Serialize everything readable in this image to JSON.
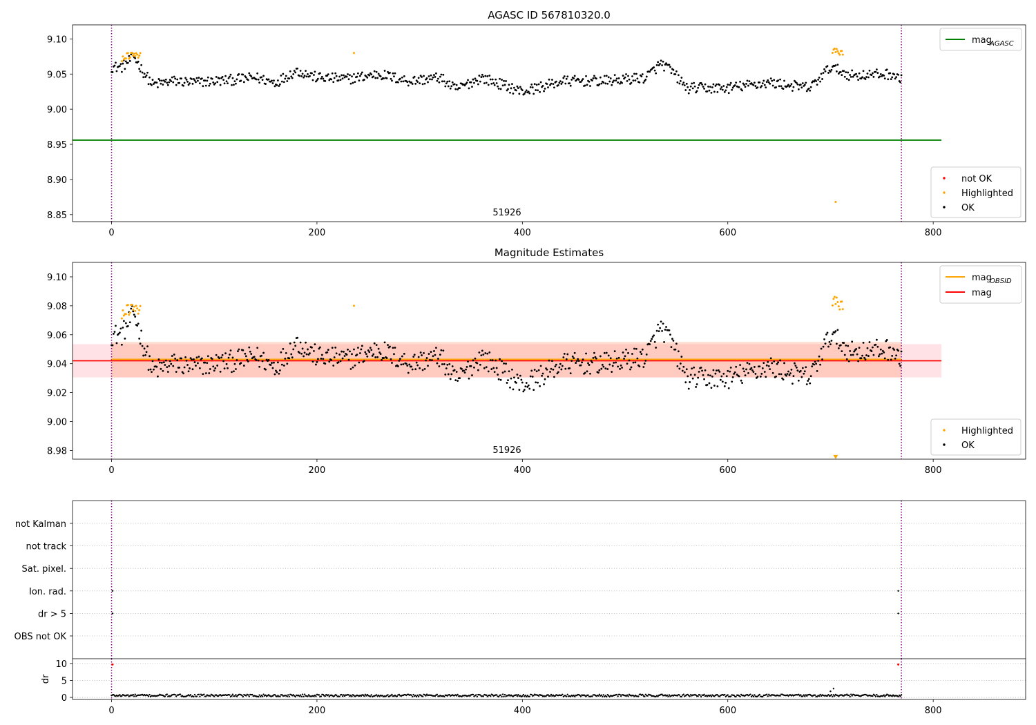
{
  "chart_data": [
    {
      "type": "scatter",
      "title": "AGASC ID 567810320.0",
      "obsid_label": "51926",
      "xlim": [
        -38,
        890
      ],
      "ylim": [
        8.84,
        9.12
      ],
      "xticks": [
        0,
        200,
        400,
        600,
        800
      ],
      "xtick_labels": [
        "0",
        "200",
        "400",
        "600",
        "800"
      ],
      "yticks": [
        8.85,
        8.9,
        8.95,
        9.0,
        9.05,
        9.1
      ],
      "ytick_labels": [
        "8.85",
        "8.90",
        "8.95",
        "9.00",
        "9.05",
        "9.10"
      ],
      "vlines": [
        0,
        769
      ],
      "lines": [
        {
          "name": "mag_AGASC",
          "color": "#008000",
          "y": 8.956,
          "x": [
            -38,
            808
          ]
        }
      ],
      "legend_lines": [
        {
          "label": "mag",
          "sub": "AGASC",
          "color": "#008000"
        }
      ],
      "legend_points": [
        {
          "label": "not OK",
          "color": "#ff0000"
        },
        {
          "label": "Highlighted",
          "color": "#ffa500"
        },
        {
          "label": "OK",
          "color": "#000000"
        }
      ],
      "highlight_segments": [
        {
          "x": [
            10,
            28
          ],
          "y": [
            9.074,
            9.08
          ],
          "noise": 0.006
        },
        {
          "x": [
            702,
            712
          ],
          "y": [
            9.084,
            9.08
          ],
          "noise": 0.004
        }
      ],
      "highlight_points": [
        {
          "x": 236,
          "y": 9.08
        },
        {
          "x": 705,
          "y": 8.868
        }
      ],
      "ok_anchors": {
        "x": [
          0,
          10,
          22,
          30,
          40,
          60,
          80,
          100,
          120,
          140,
          160,
          180,
          200,
          230,
          260,
          290,
          320,
          335,
          360,
          400,
          440,
          480,
          520,
          535,
          545,
          560,
          600,
          640,
          680,
          700,
          720,
          760,
          770
        ],
        "y": [
          9.06,
          9.06,
          9.075,
          9.055,
          9.035,
          9.04,
          9.038,
          9.04,
          9.042,
          9.045,
          9.038,
          9.055,
          9.045,
          9.043,
          9.05,
          9.04,
          9.045,
          9.028,
          9.045,
          9.025,
          9.04,
          9.04,
          9.045,
          9.065,
          9.055,
          9.03,
          9.03,
          9.038,
          9.03,
          9.06,
          9.048,
          9.05,
          9.04
        ]
      },
      "ok_noise": 0.0075,
      "point_count": 770
    },
    {
      "type": "scatter",
      "title": "Magnitude Estimates",
      "obsid_label": "51926",
      "xlim": [
        -38,
        890
      ],
      "ylim": [
        8.974,
        9.11
      ],
      "xticks": [
        0,
        200,
        400,
        600,
        800
      ],
      "xtick_labels": [
        "0",
        "200",
        "400",
        "600",
        "800"
      ],
      "yticks": [
        8.98,
        9.0,
        9.02,
        9.04,
        9.06,
        9.08,
        9.1
      ],
      "ytick_labels": [
        "8.98",
        "9.00",
        "9.02",
        "9.04",
        "9.06",
        "9.08",
        "9.10"
      ],
      "vlines": [
        0,
        769
      ],
      "bands": [
        {
          "x": [
            -38,
            808
          ],
          "y": [
            9.0305,
            9.0535
          ],
          "color": "#ffb6c1",
          "opacity": 0.4
        },
        {
          "x": [
            0,
            769
          ],
          "y": [
            9.0305,
            9.055
          ],
          "color": "#ffa07a",
          "opacity": 0.35
        }
      ],
      "lines": [
        {
          "name": "mag_OBSID",
          "color": "#ffa500",
          "y": 9.043,
          "x": [
            0,
            769
          ]
        },
        {
          "name": "mag",
          "color": "#ff0000",
          "y": 9.042,
          "x": [
            -38,
            808
          ]
        }
      ],
      "legend_lines": [
        {
          "label": "mag",
          "sub": "OBSID",
          "color": "#ffa500"
        },
        {
          "label": "mag",
          "sub": "",
          "color": "#ff0000"
        }
      ],
      "legend_points": [
        {
          "label": "Highlighted",
          "color": "#ffa500"
        },
        {
          "label": "OK",
          "color": "#000000"
        }
      ],
      "highlight_segments": [
        {
          "x": [
            10,
            28
          ],
          "y": [
            9.076,
            9.08
          ],
          "noise": 0.005
        },
        {
          "x": [
            702,
            712
          ],
          "y": [
            9.084,
            9.08
          ],
          "noise": 0.004
        }
      ],
      "highlight_points": [
        {
          "x": 236,
          "y": 9.08
        }
      ],
      "marker": {
        "x": 705,
        "y": 8.9755,
        "color": "#ffa500"
      },
      "ok_anchors": {
        "x": [
          0,
          10,
          22,
          30,
          40,
          60,
          80,
          100,
          120,
          140,
          160,
          180,
          200,
          230,
          260,
          290,
          320,
          335,
          360,
          400,
          440,
          480,
          520,
          535,
          545,
          560,
          600,
          640,
          680,
          700,
          720,
          760,
          770
        ],
        "y": [
          9.06,
          9.06,
          9.075,
          9.055,
          9.035,
          9.04,
          9.038,
          9.04,
          9.042,
          9.045,
          9.038,
          9.055,
          9.045,
          9.043,
          9.05,
          9.04,
          9.045,
          9.028,
          9.045,
          9.025,
          9.04,
          9.04,
          9.045,
          9.065,
          9.055,
          9.03,
          9.03,
          9.038,
          9.03,
          9.06,
          9.048,
          9.05,
          9.04
        ]
      },
      "ok_noise": 0.0075,
      "point_count": 770
    },
    {
      "type": "scatter",
      "title": "",
      "xlim": [
        -38,
        890
      ],
      "categories": [
        "not Kalman",
        "not track",
        "Sat. pixel.",
        "Ion. rad.",
        "dr > 5",
        "OBS not OK"
      ],
      "vlines": [
        0,
        769
      ],
      "flags": [
        {
          "category": "Ion. rad.",
          "x": [
            1,
            766
          ]
        },
        {
          "category": "dr > 5",
          "x": [
            1,
            766
          ]
        }
      ]
    },
    {
      "type": "scatter",
      "title": "",
      "ylabel": "dr",
      "xlim": [
        -38,
        890
      ],
      "ylim": [
        -0.6,
        11.4
      ],
      "xticks": [
        0,
        200,
        400,
        600,
        800
      ],
      "xtick_labels": [
        "0",
        "200",
        "400",
        "600",
        "800"
      ],
      "yticks": [
        0,
        5,
        10
      ],
      "ytick_labels": [
        "0",
        "5",
        "10"
      ],
      "vlines": [
        0,
        769
      ],
      "notok_points": [
        {
          "x": 1,
          "y": 9.7
        },
        {
          "x": 766,
          "y": 9.7
        }
      ],
      "dr_points": [
        {
          "x": 703,
          "y": 2.6
        },
        {
          "x": 700,
          "y": 1.8
        }
      ],
      "dr_baseline": 0.55,
      "dr_noise": 0.35,
      "point_count": 770
    }
  ]
}
